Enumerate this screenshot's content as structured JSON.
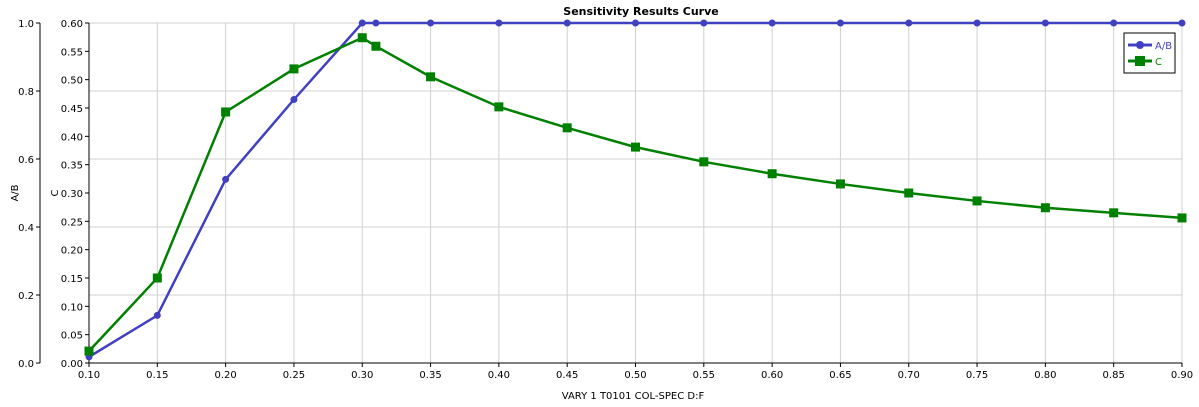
{
  "chart_data": {
    "type": "line",
    "title": "Sensitivity Results Curve",
    "xlabel": "VARY   1 T0101 COL-SPEC D:F",
    "ylabel_left": "A/B",
    "ylabel_right": "C",
    "xlim": [
      0.1,
      0.9
    ],
    "ylim_left": [
      0.0,
      1.0
    ],
    "ylim_right": [
      0.0,
      0.6
    ],
    "x_ticks": [
      "0.10",
      "0.15",
      "0.20",
      "0.25",
      "0.30",
      "0.35",
      "0.40",
      "0.45",
      "0.50",
      "0.55",
      "0.60",
      "0.65",
      "0.70",
      "0.75",
      "0.80",
      "0.85",
      "0.90"
    ],
    "y_left_ticks": [
      "0.0",
      "0.2",
      "0.4",
      "0.6",
      "0.8",
      "1.0"
    ],
    "y_right_ticks": [
      "0.00",
      "0.05",
      "0.10",
      "0.15",
      "0.20",
      "0.25",
      "0.30",
      "0.35",
      "0.40",
      "0.45",
      "0.50",
      "0.55",
      "0.60"
    ],
    "grid": true,
    "legend_position": "top-right",
    "x": [
      0.1,
      0.15,
      0.2,
      0.25,
      0.3,
      0.31,
      0.35,
      0.4,
      0.45,
      0.5,
      0.55,
      0.6,
      0.65,
      0.7,
      0.75,
      0.8,
      0.85,
      0.9
    ],
    "series": [
      {
        "name": "A/B",
        "axis": "left",
        "color": "#4040c0",
        "marker": "circle",
        "values": [
          0.018,
          0.14,
          0.54,
          0.775,
          1.0,
          1.0,
          1.0,
          1.0,
          1.0,
          1.0,
          1.0,
          1.0,
          1.0,
          1.0,
          1.0,
          1.0,
          1.0,
          1.0
        ]
      },
      {
        "name": "C",
        "axis": "right",
        "color": "#008000",
        "marker": "square",
        "values": [
          0.021,
          0.15,
          0.443,
          0.519,
          0.574,
          0.559,
          0.505,
          0.452,
          0.415,
          0.381,
          0.355,
          0.334,
          0.316,
          0.3,
          0.286,
          0.274,
          0.265,
          0.256
        ]
      }
    ]
  }
}
